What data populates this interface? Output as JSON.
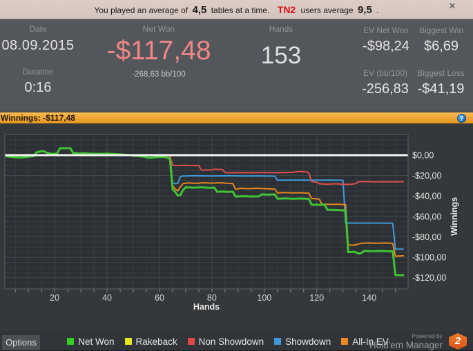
{
  "banner": {
    "prefix": "You played an average of",
    "avg_tables": "4,5",
    "mid": "tables at a time.",
    "brand": "TN2",
    "after": "users average",
    "avg_users": "9,5",
    "end": ".",
    "close_glyph": "✕"
  },
  "stats": {
    "date_label": "Date",
    "date_value": "08.09.2015",
    "duration_label": "Duration",
    "duration_value": "0:16",
    "net_won_label": "Net Won",
    "net_won_value": "-$117,48",
    "net_won_sub": "-268,63 bb/100",
    "hands_label": "Hands",
    "hands_value": "153",
    "ev_net_won_label": "EV Net Won",
    "ev_net_won_value": "-$98,24",
    "biggest_win_label": "Biggest Win",
    "biggest_win_value": "$6,69",
    "ev_bb_label": "EV (bb/100)",
    "ev_bb_value": "-256,83",
    "biggest_loss_label": "Biggest Loss",
    "biggest_loss_value": "-$41,19"
  },
  "chart_header": {
    "title": "Winnings: -$117,48",
    "help_glyph": "?"
  },
  "chart_data": {
    "type": "line",
    "title": "Winnings: -$117,48",
    "xlabel": "Hands",
    "ylabel": "Winnings",
    "xlim": [
      1,
      153
    ],
    "ylim": [
      -131,
      20
    ],
    "x_ticks": [
      20,
      40,
      60,
      80,
      100,
      120,
      140
    ],
    "y_ticks": [
      {
        "value": 0,
        "label": "$0,00"
      },
      {
        "value": -20,
        "label": "-$20,00"
      },
      {
        "value": -40,
        "label": "-$40,00"
      },
      {
        "value": -60,
        "label": "-$60,00"
      },
      {
        "value": -80,
        "label": "-$80,00"
      },
      {
        "value": -100,
        "label": "-$100,00"
      },
      {
        "value": -120,
        "label": "-$120,00"
      }
    ],
    "grid": {
      "minor_step_x": 5,
      "minor_step_y": 5,
      "major_step_x": 20,
      "major_step_y": 20
    },
    "zero_line": {
      "value": 0,
      "color": "#f4f4f4",
      "width": 3
    },
    "series": [
      {
        "name": "Rakeback",
        "color": "#e6e622",
        "width": 2,
        "points": [
          [
            1,
            0
          ],
          [
            153,
            0
          ]
        ]
      },
      {
        "name": "Showdown",
        "color": "#3e9adb",
        "width": 2,
        "points": [
          [
            1,
            0
          ],
          [
            63,
            0
          ],
          [
            64,
            -0.6
          ],
          [
            65,
            -27
          ],
          [
            66,
            -28
          ],
          [
            67,
            -27.5
          ],
          [
            68,
            -21
          ],
          [
            69,
            -20.4
          ],
          [
            74,
            -20.2
          ],
          [
            80,
            -20.4
          ],
          [
            86,
            -20.2
          ],
          [
            92,
            -20.4
          ],
          [
            98,
            -20.3
          ],
          [
            104,
            -20.6
          ],
          [
            105,
            -24.5
          ],
          [
            112,
            -24.4
          ],
          [
            119,
            -24.5
          ],
          [
            126,
            -24.5
          ],
          [
            130,
            -24.6
          ],
          [
            131,
            -66.5
          ],
          [
            137,
            -66.5
          ],
          [
            143,
            -66.5
          ],
          [
            148,
            -66.6
          ],
          [
            149,
            -66.8
          ],
          [
            150,
            -92
          ],
          [
            153,
            -92
          ]
        ]
      },
      {
        "name": "Non Showdown",
        "color": "#dd4f4f",
        "width": 2,
        "points": [
          [
            1,
            0
          ],
          [
            63,
            0
          ],
          [
            64,
            -1.2
          ],
          [
            65,
            -10
          ],
          [
            67,
            -10.2
          ],
          [
            69,
            -10
          ],
          [
            72,
            -10.2
          ],
          [
            75,
            -10.1
          ],
          [
            76,
            -14.5
          ],
          [
            78,
            -14.6
          ],
          [
            80,
            -14.4
          ],
          [
            81,
            -13.8
          ],
          [
            84,
            -14
          ],
          [
            85,
            -17
          ],
          [
            88,
            -17.2
          ],
          [
            92,
            -17
          ],
          [
            96,
            -17.2
          ],
          [
            100,
            -17
          ],
          [
            104,
            -17.2
          ],
          [
            108,
            -17
          ],
          [
            111,
            -16.8
          ],
          [
            112,
            -16.2
          ],
          [
            114,
            -16
          ],
          [
            116,
            -16.4
          ],
          [
            117,
            -17.2
          ],
          [
            118,
            -25.9
          ],
          [
            120,
            -26.5
          ],
          [
            121,
            -28
          ],
          [
            124,
            -28.4
          ],
          [
            127,
            -28
          ],
          [
            130,
            -28.4
          ],
          [
            132,
            -28.6
          ],
          [
            134,
            -28.2
          ],
          [
            135,
            -27.6
          ],
          [
            136,
            -26
          ],
          [
            139,
            -25.8
          ],
          [
            142,
            -26.2
          ],
          [
            145,
            -26
          ],
          [
            148,
            -26.2
          ],
          [
            153,
            -26
          ]
        ]
      },
      {
        "name": "All-In EV",
        "color": "#e8861d",
        "width": 2,
        "points": [
          [
            1,
            0
          ],
          [
            63,
            0
          ],
          [
            64,
            -0.8
          ],
          [
            65,
            -30
          ],
          [
            66,
            -33
          ],
          [
            67,
            -35
          ],
          [
            68,
            -31
          ],
          [
            69,
            -27.8
          ],
          [
            71,
            -27.2
          ],
          [
            74,
            -27.6
          ],
          [
            77,
            -27
          ],
          [
            80,
            -27.4
          ],
          [
            83,
            -27
          ],
          [
            86,
            -27.6
          ],
          [
            88,
            -27.8
          ],
          [
            89,
            -33.4
          ],
          [
            91,
            -32.4
          ],
          [
            94,
            -32.8
          ],
          [
            97,
            -32.4
          ],
          [
            100,
            -32.8
          ],
          [
            102,
            -33
          ],
          [
            104,
            -33.2
          ],
          [
            105,
            -37
          ],
          [
            108,
            -36.6
          ],
          [
            111,
            -37
          ],
          [
            114,
            -36.8
          ],
          [
            117,
            -37.2
          ],
          [
            118,
            -42.4
          ],
          [
            120,
            -42.8
          ],
          [
            121,
            -43.2
          ],
          [
            122,
            -48
          ],
          [
            125,
            -48.2
          ],
          [
            128,
            -48
          ],
          [
            131,
            -48.4
          ],
          [
            132,
            -88
          ],
          [
            134,
            -88.2
          ],
          [
            136,
            -87
          ],
          [
            137,
            -86.2
          ],
          [
            140,
            -86
          ],
          [
            143,
            -86.2
          ],
          [
            146,
            -86
          ],
          [
            149,
            -86.4
          ],
          [
            150,
            -99
          ],
          [
            153,
            -98.5
          ]
        ]
      },
      {
        "name": "Net Won",
        "color": "#3fc433",
        "width": 3,
        "points": [
          [
            1,
            -1
          ],
          [
            3,
            -1.6
          ],
          [
            5,
            -2
          ],
          [
            7,
            -2.3
          ],
          [
            9,
            -1.8
          ],
          [
            11,
            -1.2
          ],
          [
            12,
            -1
          ],
          [
            13,
            2.8
          ],
          [
            15,
            3.9
          ],
          [
            16,
            3.8
          ],
          [
            17,
            2.2
          ],
          [
            19,
            1.2
          ],
          [
            21,
            1.6
          ],
          [
            22,
            6.8
          ],
          [
            26,
            6.8
          ],
          [
            27,
            2.3
          ],
          [
            29,
            1.6
          ],
          [
            31,
            1.9
          ],
          [
            34,
            1.4
          ],
          [
            37,
            1.2
          ],
          [
            40,
            1.5
          ],
          [
            43,
            1
          ],
          [
            46,
            0.6
          ],
          [
            48,
            0.2
          ],
          [
            50,
            -0.4
          ],
          [
            52,
            -0.8
          ],
          [
            54,
            -1.4
          ],
          [
            56,
            -2.6
          ],
          [
            58,
            -2.2
          ],
          [
            60,
            -1.6
          ],
          [
            62,
            -1.8
          ],
          [
            63,
            -2.4
          ],
          [
            64,
            -4
          ],
          [
            65,
            -33
          ],
          [
            66,
            -36
          ],
          [
            67,
            -39.5
          ],
          [
            68,
            -39
          ],
          [
            69,
            -34
          ],
          [
            70,
            -31.5
          ],
          [
            73,
            -31.8
          ],
          [
            76,
            -31.5
          ],
          [
            79,
            -32
          ],
          [
            81,
            -31.8
          ],
          [
            82,
            -36
          ],
          [
            84,
            -35.6
          ],
          [
            86,
            -36
          ],
          [
            88,
            -35.8
          ],
          [
            89,
            -40.5
          ],
          [
            92,
            -40.2
          ],
          [
            95,
            -40.5
          ],
          [
            98,
            -40.3
          ],
          [
            99,
            -38.4
          ],
          [
            101,
            -38.6
          ],
          [
            104,
            -38.4
          ],
          [
            105,
            -42.7
          ],
          [
            108,
            -42.4
          ],
          [
            111,
            -42.7
          ],
          [
            114,
            -42.5
          ],
          [
            117,
            -42.8
          ],
          [
            118,
            -48.4
          ],
          [
            121,
            -48.6
          ],
          [
            123,
            -48.4
          ],
          [
            124,
            -53.4
          ],
          [
            127,
            -53.6
          ],
          [
            130,
            -54
          ],
          [
            131,
            -54.4
          ],
          [
            132,
            -95
          ],
          [
            134,
            -94.6
          ],
          [
            135,
            -95.2
          ],
          [
            136,
            -96.4
          ],
          [
            137,
            -95.8
          ],
          [
            138,
            -93.8
          ],
          [
            141,
            -94
          ],
          [
            144,
            -93.8
          ],
          [
            147,
            -94
          ],
          [
            149,
            -94.2
          ],
          [
            150,
            -117.5
          ],
          [
            153,
            -117.5
          ]
        ]
      }
    ],
    "colors": {
      "plot_bg": "#2c3034",
      "outer_bg": "#34383b",
      "grid_minor": "#373d42",
      "grid_major": "#41484f",
      "border": "#5a6066",
      "tick": "#7c8287",
      "tick_label": "#d3d5d6",
      "axis_label": "#e8e8e8",
      "y_label": "#e3e3e3"
    },
    "legend_position": "bottom"
  },
  "footer": {
    "options_label": "Options",
    "legend": [
      {
        "label": "Net Won",
        "color": "#33cc22"
      },
      {
        "label": "Rakeback",
        "color": "#e6e622"
      },
      {
        "label": "Non Showdown",
        "color": "#e04848"
      },
      {
        "label": "Showdown",
        "color": "#3e9adb"
      },
      {
        "label": "All-In EV",
        "color": "#ee8822"
      }
    ],
    "powered_by": "Powered by",
    "brand": "Hold'em Manager",
    "badge": "2"
  }
}
